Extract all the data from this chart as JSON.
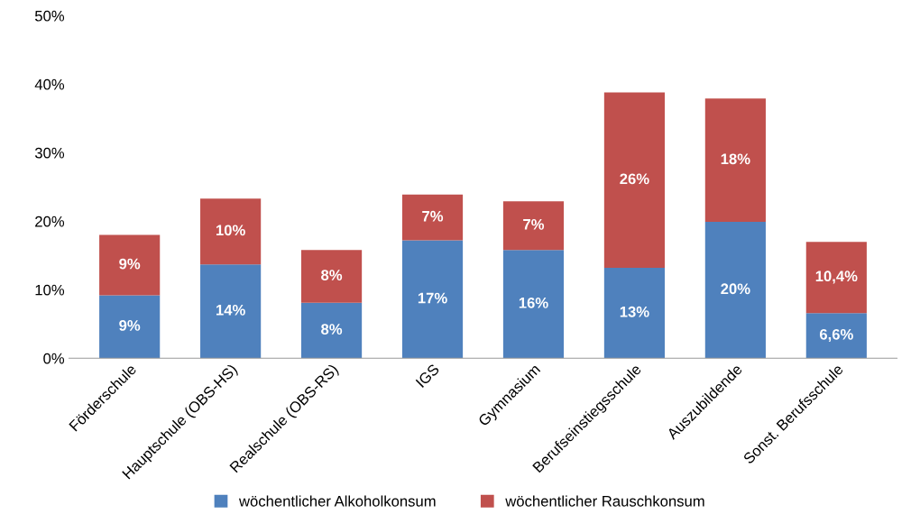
{
  "chart_data": {
    "type": "bar",
    "stacked": true,
    "categories": [
      "Förderschule",
      "Hauptschule (OBS-HS)",
      "Realschule (OBS-RS)",
      "IGS",
      "Gymnasium",
      "Berufseinstiegsschule",
      "Auszubildende",
      "Sonst. Berufsschule"
    ],
    "series": [
      {
        "name": "wöchentlicher Alkoholkonsum",
        "color": "#4f81bd",
        "values": [
          9.2,
          13.7,
          8.1,
          17.2,
          15.8,
          13.2,
          19.9,
          6.6
        ],
        "value_labels": [
          "9%",
          "14%",
          "8%",
          "17%",
          "16%",
          "13%",
          "20%",
          "6,6%"
        ]
      },
      {
        "name": "wöchentlicher Rauschkonsum",
        "color": "#c0504d",
        "values": [
          8.8,
          9.6,
          7.7,
          6.7,
          7.1,
          25.6,
          18.0,
          10.4
        ],
        "value_labels": [
          "9%",
          "10%",
          "8%",
          "7%",
          "7%",
          "26%",
          "18%",
          "10,4%"
        ]
      }
    ],
    "ylim": [
      0,
      50
    ],
    "yticks": [
      {
        "value": 0,
        "label": "0%"
      },
      {
        "value": 10,
        "label": "10%"
      },
      {
        "value": 20,
        "label": "20%"
      },
      {
        "value": 30,
        "label": "30%"
      },
      {
        "value": 40,
        "label": "40%"
      },
      {
        "value": 50,
        "label": "50%"
      }
    ],
    "grid": false,
    "legend": "bottom"
  }
}
